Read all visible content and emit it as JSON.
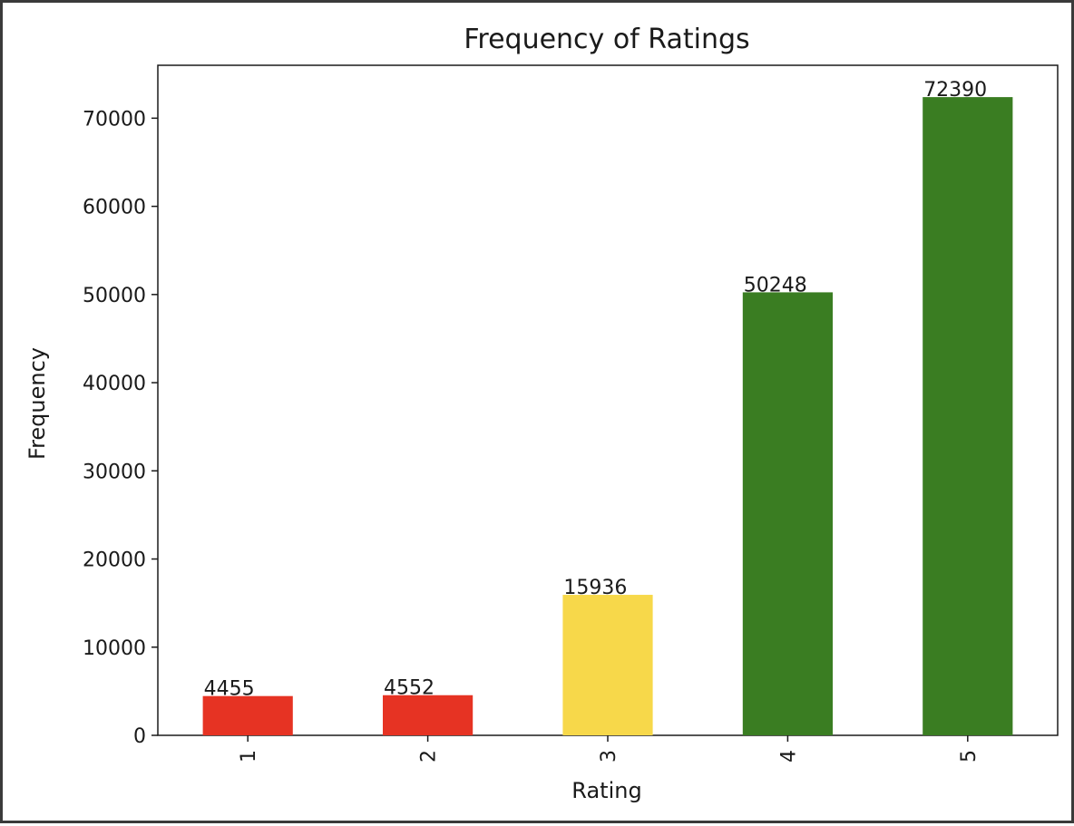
{
  "chart_data": {
    "type": "bar",
    "title": "Frequency of Ratings",
    "xlabel": "Rating",
    "ylabel": "Frequency",
    "categories": [
      "1",
      "2",
      "3",
      "4",
      "5"
    ],
    "values": [
      4455,
      4552,
      15936,
      50248,
      72390
    ],
    "data_labels": [
      "4455",
      "4552",
      "15936",
      "50248",
      "72390"
    ],
    "bar_colors": [
      "#e63323",
      "#e63323",
      "#f7d84a",
      "#3a7d22",
      "#3a7d22"
    ],
    "yticks": [
      0,
      10000,
      20000,
      30000,
      40000,
      50000,
      60000,
      70000
    ],
    "ylim": [
      0,
      76000
    ],
    "grid": false,
    "legend": "none"
  }
}
